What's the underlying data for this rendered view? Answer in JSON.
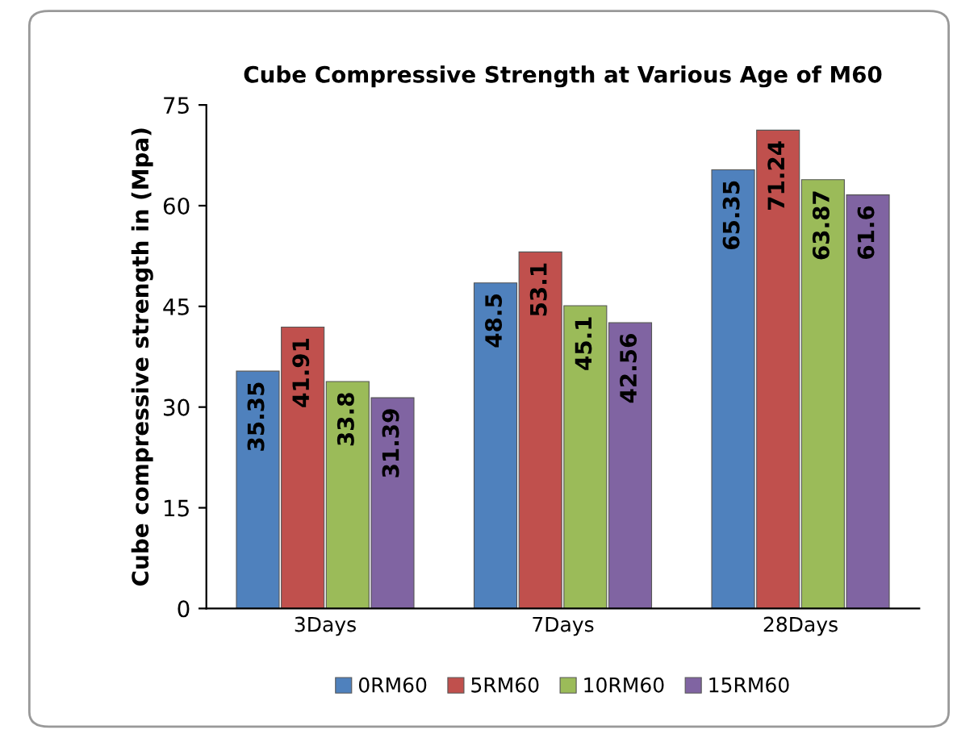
{
  "chart_data": {
    "type": "bar",
    "title": "Cube Compressive Strength at Various Age of M60",
    "ylabel": "Cube compressive strength in (Mpa)",
    "categories": [
      "3Days",
      "7Days",
      "28Days"
    ],
    "series": [
      {
        "name": "0RM60",
        "color": "#4f81bd",
        "values": [
          35.35,
          48.5,
          65.35
        ]
      },
      {
        "name": "5RM60",
        "color": "#c0504d",
        "values": [
          41.91,
          53.1,
          71.24
        ]
      },
      {
        "name": "10RM60",
        "color": "#9bbb59",
        "values": [
          33.8,
          45.1,
          63.87
        ]
      },
      {
        "name": "15RM60",
        "color": "#8064a2",
        "values": [
          31.39,
          42.56,
          61.6
        ]
      }
    ],
    "ylim": [
      0,
      75
    ],
    "yticks": [
      0,
      15,
      30,
      45,
      60,
      75
    ],
    "data_labels": true,
    "grid": false,
    "legend": "bottom"
  }
}
